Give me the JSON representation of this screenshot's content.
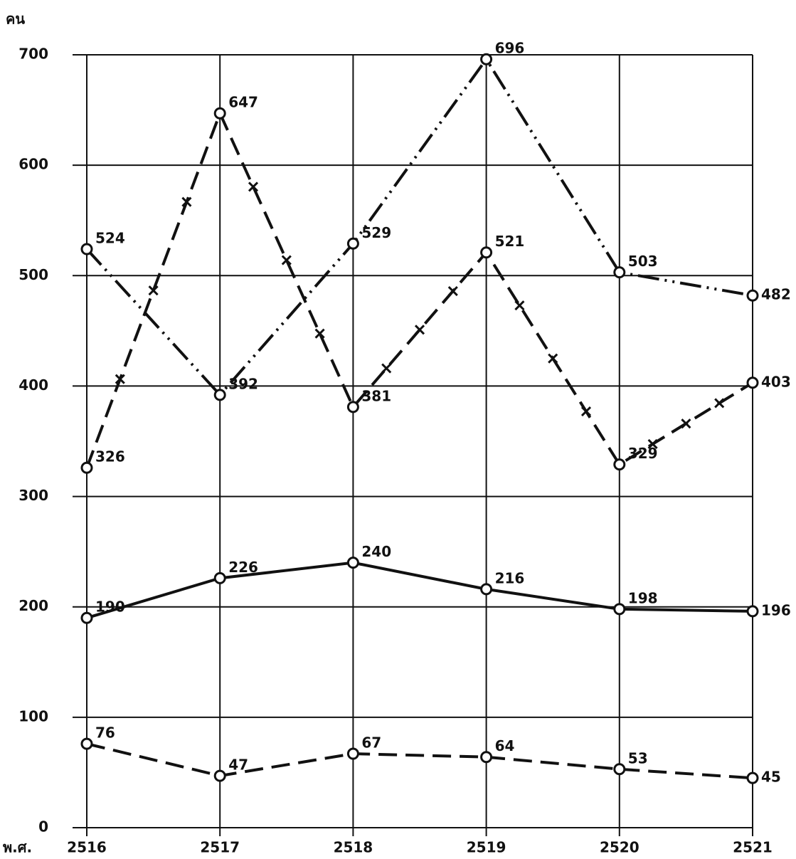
{
  "chart_data": {
    "type": "line",
    "y_label": "คน",
    "x_label": "พ.ศ.",
    "categories": [
      "2516",
      "2517",
      "2518",
      "2519",
      "2520",
      "2521"
    ],
    "series": [
      {
        "color": "#111111",
        "style": "dash-dot-dot",
        "values": [
          524,
          392,
          529,
          696,
          503,
          482
        ]
      },
      {
        "color": "#111111",
        "style": "dash-cross",
        "values": [
          326,
          647,
          381,
          521,
          329,
          403
        ]
      },
      {
        "color": "#111111",
        "style": "solid",
        "values": [
          190,
          226,
          240,
          216,
          198,
          196
        ]
      },
      {
        "color": "#111111",
        "style": "dash",
        "values": [
          76,
          47,
          67,
          64,
          53,
          45
        ]
      }
    ],
    "ylim": [
      0,
      700
    ],
    "yticks": [
      0,
      100,
      200,
      300,
      400,
      500,
      600,
      700
    ],
    "grid": true
  }
}
